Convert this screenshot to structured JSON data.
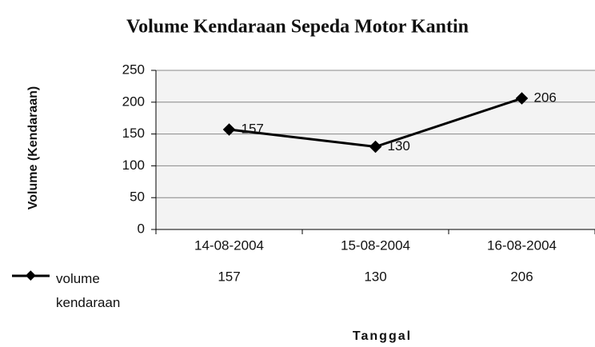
{
  "chart_data": {
    "type": "line",
    "title": "Volume Kendaraan Sepeda Motor Kantin",
    "x_label": "Tanggal",
    "y_label": "Volume (Kendaraan)",
    "categories": [
      "14-08-2004",
      "15-08-2004",
      "16-08-2004"
    ],
    "series": [
      {
        "name": "volume kendaraan",
        "color": "#000000",
        "values": [
          157,
          130,
          206
        ]
      }
    ],
    "ylim": [
      0,
      250
    ],
    "yticks": [
      0,
      50,
      100,
      150,
      200,
      250
    ],
    "grid": true
  }
}
